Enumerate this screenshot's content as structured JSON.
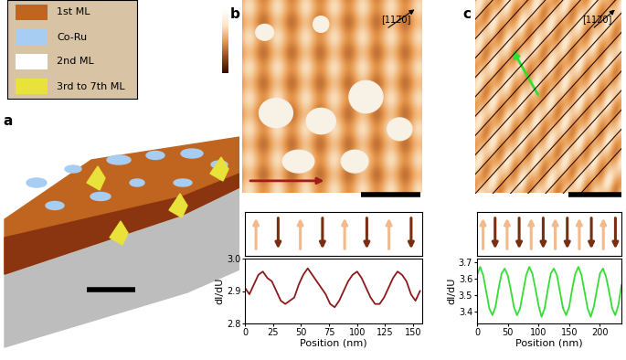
{
  "panel_labels": [
    "a",
    "b",
    "c"
  ],
  "legend": [
    {
      "label": "1st ML",
      "color": "#c0651f"
    },
    {
      "label": "Co-Ru",
      "color": "#a8cdf2"
    },
    {
      "label": "2nd ML",
      "color": "#ffffff"
    },
    {
      "label": "3rd to 7th ML",
      "color": "#e8e23a"
    }
  ],
  "direction_label": "[112̅0]",
  "chart_data": [
    {
      "type": "line",
      "panel": "b",
      "x_label": "Position (nm)",
      "y_label": "dI/dU",
      "color": "#8b1a1a",
      "x": [
        0,
        4,
        8,
        12,
        16,
        20,
        24,
        28,
        32,
        36,
        40,
        44,
        48,
        52,
        56,
        60,
        64,
        68,
        72,
        76,
        80,
        84,
        88,
        92,
        96,
        100,
        104,
        108,
        112,
        116,
        120,
        124,
        128,
        132,
        136,
        140,
        144,
        148,
        152,
        156
      ],
      "values": [
        2.91,
        2.89,
        2.92,
        2.95,
        2.96,
        2.94,
        2.93,
        2.9,
        2.87,
        2.86,
        2.87,
        2.88,
        2.92,
        2.95,
        2.97,
        2.95,
        2.93,
        2.91,
        2.89,
        2.86,
        2.85,
        2.87,
        2.9,
        2.93,
        2.95,
        2.96,
        2.94,
        2.91,
        2.88,
        2.86,
        2.86,
        2.88,
        2.91,
        2.94,
        2.96,
        2.95,
        2.93,
        2.89,
        2.87,
        2.9
      ],
      "xlim": [
        0,
        158
      ],
      "xticks": [
        0,
        25,
        50,
        75,
        100,
        125,
        150
      ],
      "ylim": [
        2.8,
        3.0
      ],
      "yticks": [
        2.8,
        2.9,
        3.0
      ]
    },
    {
      "type": "line",
      "panel": "c",
      "x_label": "Position (nm)",
      "y_label": "dI/dU",
      "color": "#33dd33",
      "x": [
        0,
        5,
        10,
        15,
        20,
        25,
        30,
        35,
        40,
        45,
        50,
        55,
        60,
        65,
        70,
        75,
        80,
        85,
        90,
        95,
        100,
        105,
        110,
        115,
        120,
        125,
        130,
        135,
        140,
        145,
        150,
        155,
        160,
        165,
        170,
        175,
        180,
        185,
        190,
        195,
        200,
        205,
        210,
        215,
        220,
        225,
        230,
        235
      ],
      "values": [
        3.62,
        3.67,
        3.62,
        3.52,
        3.42,
        3.38,
        3.43,
        3.54,
        3.63,
        3.66,
        3.62,
        3.53,
        3.43,
        3.38,
        3.42,
        3.52,
        3.62,
        3.67,
        3.63,
        3.54,
        3.44,
        3.37,
        3.42,
        3.53,
        3.63,
        3.66,
        3.62,
        3.52,
        3.42,
        3.38,
        3.43,
        3.54,
        3.63,
        3.67,
        3.62,
        3.52,
        3.42,
        3.37,
        3.43,
        3.53,
        3.63,
        3.66,
        3.61,
        3.52,
        3.42,
        3.38,
        3.44,
        3.56
      ],
      "xlim": [
        0,
        235
      ],
      "xticks": [
        0,
        50,
        100,
        150,
        200
      ],
      "ylim": [
        3.33,
        3.72
      ],
      "yticks": [
        3.4,
        3.5,
        3.6,
        3.7
      ]
    }
  ]
}
